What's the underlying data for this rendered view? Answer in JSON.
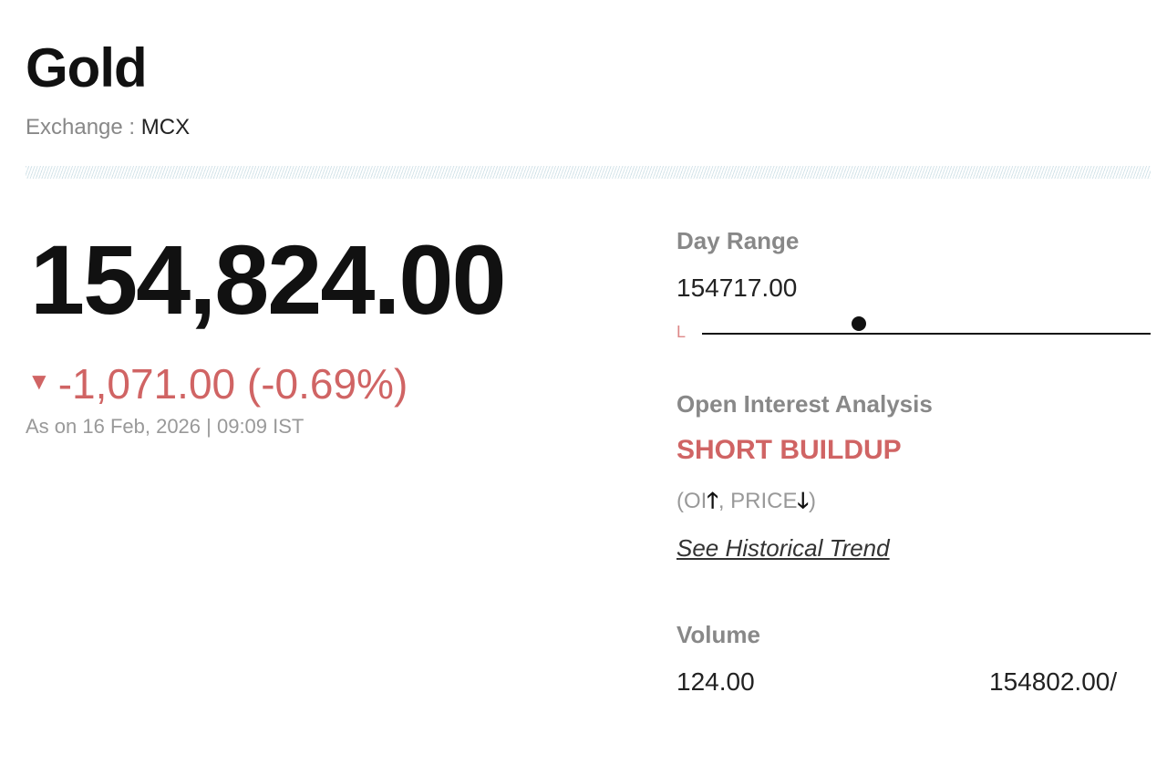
{
  "header": {
    "title": "Gold",
    "exchange_label": "Exchange :",
    "exchange_value": "MCX"
  },
  "quote": {
    "price": "154,824.00",
    "change": "-1,071.00 (-0.69%)",
    "direction_icon": "triangle-down-icon",
    "as_on": "As on 16 Feb, 2026 | 09:09 IST",
    "negative_color": "#d06464"
  },
  "day_range": {
    "label": "Day Range",
    "low_value": "154717.00",
    "low_marker": "L",
    "position_fraction": 0.35
  },
  "oi": {
    "label": "Open Interest Analysis",
    "value": "SHORT BUILDUP",
    "note_open": "(OI",
    "up_arrow": "🡑",
    "note_mid": ", PRICE",
    "down_arrow": "🡓",
    "note_close": ")",
    "link": "See Historical Trend"
  },
  "volume": {
    "label": "Volume",
    "value": "124.00",
    "right_value": "154802.00/"
  }
}
